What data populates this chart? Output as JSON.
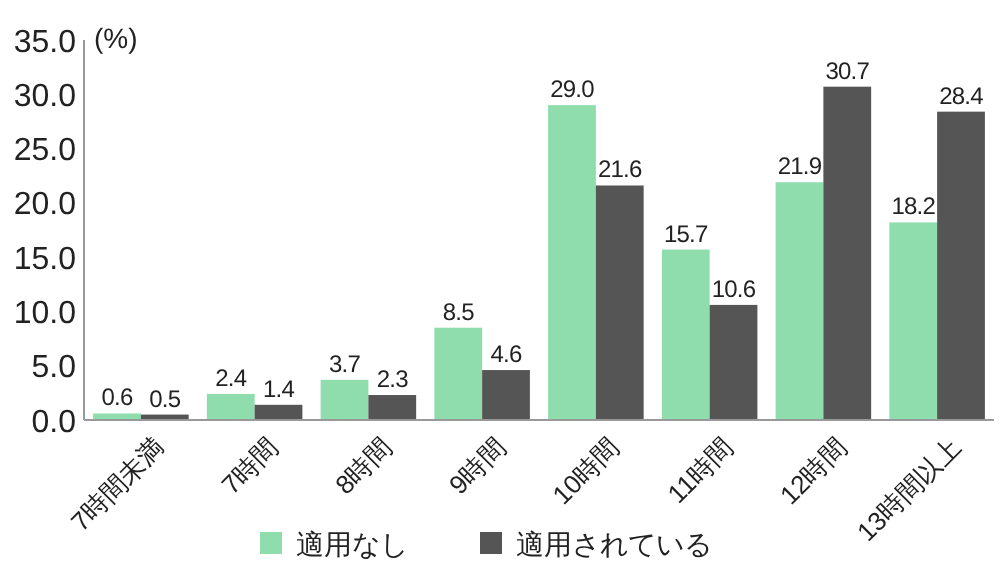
{
  "chart_data": {
    "type": "bar",
    "ylabel": "(%)",
    "categories": [
      "7時間未満",
      "7時間",
      "8時間",
      "9時間",
      "10時間",
      "11時間",
      "12時間",
      "13時間以上"
    ],
    "series": [
      {
        "name": "適用なし",
        "color": "#8fdcac",
        "values": [
          0.6,
          2.4,
          3.7,
          8.5,
          29.0,
          15.7,
          21.9,
          18.2
        ],
        "value_labels": [
          "0.6",
          "2.4",
          "3.7",
          "8.5",
          "29.0",
          "15.7",
          "21.9",
          "18.2"
        ]
      },
      {
        "name": "適用されている",
        "color": "#555555",
        "values": [
          0.5,
          1.4,
          2.3,
          4.6,
          21.6,
          10.6,
          30.7,
          28.4
        ],
        "value_labels": [
          "0.5",
          "1.4",
          "2.3",
          "4.6",
          "21.6",
          "10.6",
          "30.7",
          "28.4"
        ]
      }
    ],
    "ylim": [
      0,
      35
    ],
    "yticks": [
      {
        "value": 0,
        "label": "0.0"
      },
      {
        "value": 5,
        "label": "5.0"
      },
      {
        "value": 10,
        "label": "10.0"
      },
      {
        "value": 15,
        "label": "15.0"
      },
      {
        "value": 20,
        "label": "20.0"
      },
      {
        "value": 25,
        "label": "25.0"
      },
      {
        "value": 30,
        "label": "30.0"
      },
      {
        "value": 35,
        "label": "35.0"
      }
    ],
    "legend": "bottom",
    "grid": false
  }
}
